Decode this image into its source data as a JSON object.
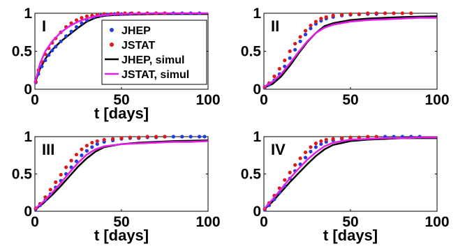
{
  "chart_data": [
    {
      "type": "scatter",
      "panel_label": "I",
      "xlabel": "t [days]",
      "ylabel": "",
      "xlim": [
        0,
        100
      ],
      "ylim": [
        0,
        1
      ],
      "x_ticks": [
        "0",
        "50",
        "100"
      ],
      "y_ticks": [
        "0",
        "0.5",
        "1"
      ],
      "series": [
        {
          "name": "JHEP",
          "kind": "points",
          "color": "#1f3de0",
          "x": [
            0.5,
            2,
            4,
            6,
            8,
            10,
            12,
            15,
            18,
            21,
            24,
            27,
            30,
            34,
            38,
            42,
            46,
            50,
            55,
            60,
            65,
            70,
            75,
            80,
            85,
            90,
            95
          ],
          "y": [
            0.09,
            0.2,
            0.3,
            0.38,
            0.45,
            0.51,
            0.56,
            0.63,
            0.7,
            0.76,
            0.82,
            0.87,
            0.91,
            0.95,
            0.97,
            0.98,
            0.99,
            0.99,
            0.995,
            1,
            1,
            1,
            1,
            1,
            1,
            1,
            1
          ]
        },
        {
          "name": "JSTAT",
          "kind": "points",
          "color": "#e01818",
          "x": [
            0.5,
            2,
            4,
            6,
            8,
            10,
            12,
            15,
            18,
            21,
            24,
            27,
            30,
            33,
            36,
            40,
            44,
            48,
            52,
            56,
            60,
            65,
            70,
            75
          ],
          "y": [
            0.1,
            0.25,
            0.36,
            0.46,
            0.54,
            0.61,
            0.67,
            0.75,
            0.82,
            0.87,
            0.91,
            0.94,
            0.96,
            0.97,
            0.98,
            0.99,
            0.99,
            1,
            1,
            1,
            1,
            1,
            1,
            1
          ]
        },
        {
          "name": "JHEP, simul",
          "kind": "line",
          "color": "#000000",
          "x": [
            0,
            3,
            6,
            10,
            15,
            20,
            25,
            30,
            35,
            40,
            45,
            50,
            60,
            70,
            80,
            90,
            100
          ],
          "y": [
            0.08,
            0.27,
            0.4,
            0.52,
            0.63,
            0.72,
            0.81,
            0.89,
            0.94,
            0.965,
            0.975,
            0.98,
            0.985,
            0.99,
            0.99,
            0.99,
            0.99
          ]
        },
        {
          "name": "JSTAT, simul",
          "kind": "line",
          "color": "#e61ee6",
          "x": [
            0,
            3,
            6,
            10,
            15,
            20,
            25,
            30,
            35,
            40,
            45,
            50,
            60,
            70,
            80,
            90,
            100
          ],
          "y": [
            0.08,
            0.34,
            0.5,
            0.63,
            0.75,
            0.83,
            0.89,
            0.93,
            0.96,
            0.975,
            0.985,
            0.99,
            0.995,
            1,
            1,
            1,
            1
          ]
        }
      ],
      "legend": {
        "position": "top-right",
        "entries": [
          "JHEP",
          "JSTAT",
          "JHEP, simul",
          "JSTAT, simul"
        ]
      }
    },
    {
      "type": "scatter",
      "panel_label": "II",
      "xlabel": "",
      "ylabel": "",
      "xlim": [
        0,
        100
      ],
      "ylim": [
        0,
        1
      ],
      "x_ticks": [
        "0",
        "50",
        "100"
      ],
      "y_ticks": [
        "0",
        "0.5",
        "1"
      ],
      "series": [
        {
          "name": "JHEP",
          "kind": "points",
          "color": "#1f3de0",
          "x": [
            0.5,
            3,
            6,
            9,
            12,
            15,
            18,
            21,
            24,
            27,
            30,
            33,
            36,
            40,
            45,
            50,
            55,
            60,
            65,
            70,
            75
          ],
          "y": [
            0.02,
            0.06,
            0.12,
            0.2,
            0.3,
            0.41,
            0.52,
            0.63,
            0.72,
            0.8,
            0.86,
            0.9,
            0.93,
            0.95,
            0.97,
            0.98,
            0.985,
            0.99,
            0.99,
            1,
            1
          ]
        },
        {
          "name": "JSTAT",
          "kind": "points",
          "color": "#e01818",
          "x": [
            0.5,
            3,
            6,
            9,
            12,
            15,
            18,
            21,
            24,
            27,
            30,
            33,
            36,
            40,
            45,
            50,
            55,
            60,
            65,
            70,
            75,
            80,
            85
          ],
          "y": [
            0.03,
            0.08,
            0.17,
            0.27,
            0.38,
            0.5,
            0.6,
            0.69,
            0.77,
            0.84,
            0.89,
            0.93,
            0.95,
            0.97,
            0.98,
            0.99,
            0.99,
            1,
            1,
            1,
            1,
            1,
            1
          ]
        },
        {
          "name": "JHEP, simul",
          "kind": "line",
          "color": "#000000",
          "x": [
            0,
            5,
            10,
            15,
            20,
            25,
            30,
            35,
            40,
            50,
            60,
            70,
            80,
            90,
            100
          ],
          "y": [
            0.02,
            0.07,
            0.17,
            0.31,
            0.47,
            0.62,
            0.74,
            0.83,
            0.87,
            0.91,
            0.93,
            0.94,
            0.95,
            0.955,
            0.96
          ]
        },
        {
          "name": "JSTAT, simul",
          "kind": "line",
          "color": "#e61ee6",
          "x": [
            0,
            5,
            10,
            15,
            20,
            25,
            30,
            35,
            40,
            50,
            60,
            70,
            80,
            90,
            100
          ],
          "y": [
            0.03,
            0.1,
            0.2,
            0.34,
            0.49,
            0.63,
            0.74,
            0.81,
            0.85,
            0.89,
            0.91,
            0.92,
            0.93,
            0.94,
            0.94
          ]
        }
      ]
    },
    {
      "type": "scatter",
      "panel_label": "III",
      "xlabel": "t [days]",
      "ylabel": "",
      "xlim": [
        0,
        100
      ],
      "ylim": [
        0,
        1
      ],
      "x_ticks": [
        "0",
        "50",
        "100"
      ],
      "y_ticks": [
        "0",
        "0.5",
        "1"
      ],
      "series": [
        {
          "name": "JHEP",
          "kind": "points",
          "color": "#1f3de0",
          "x": [
            0.5,
            3,
            6,
            9,
            12,
            15,
            18,
            21,
            24,
            27,
            30,
            33,
            36,
            40,
            45,
            50,
            55,
            60,
            65,
            70,
            75,
            80,
            85,
            90,
            95,
            98
          ],
          "y": [
            0.03,
            0.08,
            0.15,
            0.23,
            0.32,
            0.41,
            0.5,
            0.59,
            0.67,
            0.75,
            0.81,
            0.86,
            0.9,
            0.93,
            0.95,
            0.97,
            0.98,
            0.98,
            0.99,
            0.99,
            1,
            1,
            1,
            1,
            1,
            1
          ]
        },
        {
          "name": "JSTAT",
          "kind": "points",
          "color": "#e01818",
          "x": [
            0.5,
            3,
            6,
            9,
            12,
            15,
            18,
            21,
            24,
            27,
            30,
            33,
            36,
            40,
            45,
            50,
            55,
            60,
            65,
            70,
            75
          ],
          "y": [
            0.04,
            0.1,
            0.19,
            0.29,
            0.39,
            0.49,
            0.59,
            0.68,
            0.76,
            0.83,
            0.88,
            0.92,
            0.94,
            0.96,
            0.97,
            0.98,
            0.99,
            0.99,
            1,
            1,
            1
          ]
        },
        {
          "name": "JHEP, simul",
          "kind": "line",
          "color": "#000000",
          "x": [
            0,
            5,
            10,
            15,
            20,
            25,
            30,
            35,
            40,
            50,
            60,
            70,
            80,
            90,
            100
          ],
          "y": [
            0.02,
            0.11,
            0.22,
            0.34,
            0.47,
            0.6,
            0.71,
            0.8,
            0.86,
            0.9,
            0.92,
            0.93,
            0.94,
            0.945,
            0.95
          ]
        },
        {
          "name": "JSTAT, simul",
          "kind": "line",
          "color": "#e61ee6",
          "x": [
            0,
            5,
            10,
            15,
            20,
            25,
            30,
            35,
            40,
            50,
            60,
            70,
            80,
            90,
            100
          ],
          "y": [
            0.03,
            0.13,
            0.25,
            0.38,
            0.52,
            0.65,
            0.76,
            0.83,
            0.87,
            0.9,
            0.91,
            0.92,
            0.93,
            0.93,
            0.94
          ]
        }
      ]
    },
    {
      "type": "scatter",
      "panel_label": "IV",
      "xlabel": "t [days]",
      "ylabel": "",
      "xlim": [
        0,
        100
      ],
      "ylim": [
        0,
        1
      ],
      "x_ticks": [
        "0",
        "50",
        "100"
      ],
      "y_ticks": [
        "0",
        "0.5",
        "1"
      ],
      "series": [
        {
          "name": "JHEP",
          "kind": "points",
          "color": "#1f3de0",
          "x": [
            0.5,
            3,
            6,
            9,
            12,
            15,
            18,
            21,
            24,
            27,
            30,
            33,
            36,
            40,
            45,
            50,
            55,
            60,
            65,
            70,
            75,
            80,
            85,
            90
          ],
          "y": [
            0.02,
            0.08,
            0.16,
            0.25,
            0.34,
            0.44,
            0.54,
            0.63,
            0.72,
            0.8,
            0.86,
            0.9,
            0.93,
            0.95,
            0.97,
            0.98,
            0.99,
            0.99,
            1,
            1,
            1,
            1,
            1,
            1
          ]
        },
        {
          "name": "JSTAT",
          "kind": "points",
          "color": "#e01818",
          "x": [
            0.5,
            3,
            6,
            9,
            12,
            15,
            18,
            21,
            24,
            27,
            30,
            33,
            36,
            40,
            45,
            50,
            55,
            60,
            65
          ],
          "y": [
            0.03,
            0.11,
            0.21,
            0.31,
            0.42,
            0.52,
            0.62,
            0.71,
            0.79,
            0.86,
            0.91,
            0.94,
            0.96,
            0.97,
            0.98,
            0.99,
            0.99,
            1,
            1
          ]
        },
        {
          "name": "JHEP, simul",
          "kind": "line",
          "color": "#000000",
          "x": [
            0,
            5,
            10,
            15,
            20,
            25,
            30,
            35,
            40,
            50,
            60,
            70,
            80,
            90,
            100
          ],
          "y": [
            0.02,
            0.13,
            0.26,
            0.39,
            0.51,
            0.63,
            0.74,
            0.83,
            0.89,
            0.94,
            0.96,
            0.97,
            0.98,
            0.98,
            0.98
          ]
        },
        {
          "name": "JSTAT, simul",
          "kind": "line",
          "color": "#e61ee6",
          "x": [
            0,
            5,
            10,
            15,
            20,
            25,
            30,
            35,
            40,
            50,
            60,
            70,
            80,
            90,
            100
          ],
          "y": [
            0.03,
            0.16,
            0.3,
            0.44,
            0.57,
            0.69,
            0.79,
            0.87,
            0.92,
            0.96,
            0.97,
            0.98,
            0.98,
            0.99,
            0.99
          ]
        }
      ]
    }
  ]
}
